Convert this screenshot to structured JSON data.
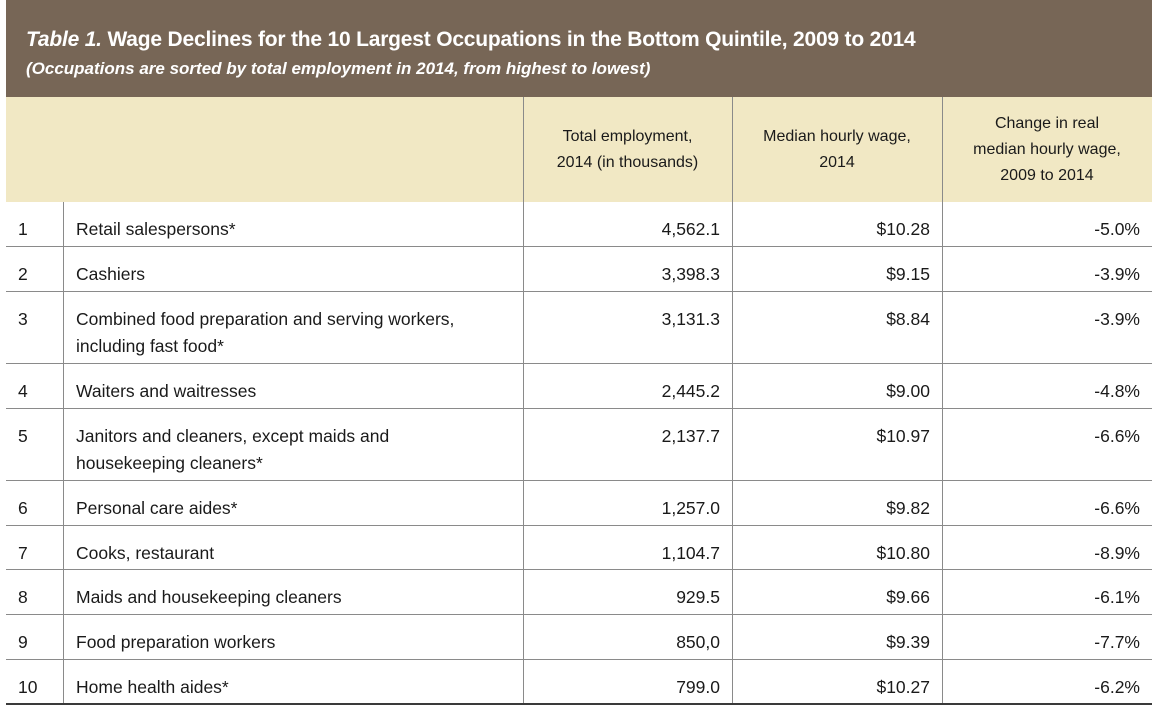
{
  "table": {
    "title_label": "Table 1.",
    "title_text": "Wage Declines for the 10 Largest Occupations in the Bottom Quintile, 2009 to 2014",
    "subtitle": "(Occupations are sorted by total employment in 2014, from highest to lowest)",
    "headers": {
      "employment": [
        "Total employment,",
        "2014 (in thousands)"
      ],
      "wage": [
        "Median hourly wage,",
        "2014"
      ],
      "change": [
        "Change in real",
        "median hourly wage,",
        "2009 to 2014"
      ]
    },
    "rows": [
      {
        "rank": "1",
        "occupation": "Retail salespersons*",
        "employment": "4,562.1",
        "wage": "$10.28",
        "change": "-5.0%"
      },
      {
        "rank": "2",
        "occupation": "Cashiers",
        "employment": "3,398.3",
        "wage": "$9.15",
        "change": "-3.9%"
      },
      {
        "rank": "3",
        "occupation": "Combined food preparation and serving workers, including fast food*",
        "employment": "3,131.3",
        "wage": "$8.84",
        "change": "-3.9%"
      },
      {
        "rank": "4",
        "occupation": "Waiters and waitresses",
        "employment": "2,445.2",
        "wage": "$9.00",
        "change": "-4.8%"
      },
      {
        "rank": "5",
        "occupation": "Janitors and cleaners, except maids and housekeeping cleaners*",
        "employment": "2,137.7",
        "wage": "$10.97",
        "change": "-6.6%"
      },
      {
        "rank": "6",
        "occupation": "Personal care aides*",
        "employment": "1,257.0",
        "wage": "$9.82",
        "change": "-6.6%"
      },
      {
        "rank": "7",
        "occupation": "Cooks, restaurant",
        "employment": "1,104.7",
        "wage": "$10.80",
        "change": "-8.9%"
      },
      {
        "rank": "8",
        "occupation": "Maids and housekeeping cleaners",
        "employment": "929.5",
        "wage": "$9.66",
        "change": "-6.1%"
      },
      {
        "rank": "9",
        "occupation": "Food preparation workers",
        "employment": "850,0",
        "wage": "$9.39",
        "change": "-7.7%"
      },
      {
        "rank": "10",
        "occupation": "Home health aides*",
        "employment": "799.0",
        "wage": "$10.27",
        "change": "-6.2%"
      }
    ]
  },
  "colors": {
    "title_band": "#776656",
    "header_band": "#f1e8c4",
    "rule": "#8a8a8a"
  },
  "chart_data": {
    "type": "table",
    "title": "Table 1. Wage Declines for the 10 Largest Occupations in the Bottom Quintile, 2009 to 2014",
    "subtitle": "(Occupations are sorted by total employment in 2014, from highest to lowest)",
    "columns": [
      "Total employment, 2014 (in thousands)",
      "Median hourly wage, 2014",
      "Change in real median hourly wage, 2009 to 2014"
    ],
    "categories": [
      "Retail salespersons*",
      "Cashiers",
      "Combined food preparation and serving workers, including fast food*",
      "Waiters and waitresses",
      "Janitors and cleaners, except maids and housekeeping cleaners*",
      "Personal care aides*",
      "Cooks, restaurant",
      "Maids and housekeeping cleaners",
      "Food preparation workers",
      "Home health aides*"
    ],
    "series": [
      {
        "name": "Total employment, 2014 (in thousands)",
        "values": [
          4562.1,
          3398.3,
          3131.3,
          2445.2,
          2137.7,
          1257.0,
          1104.7,
          929.5,
          850.0,
          799.0
        ]
      },
      {
        "name": "Median hourly wage, 2014",
        "values": [
          10.28,
          9.15,
          8.84,
          9.0,
          10.97,
          9.82,
          10.8,
          9.66,
          9.39,
          10.27
        ]
      },
      {
        "name": "Change in real median hourly wage, 2009 to 2014",
        "values": [
          -5.0,
          -3.9,
          -3.9,
          -4.8,
          -6.6,
          -6.6,
          -8.9,
          -6.1,
          -7.7,
          -6.2
        ]
      }
    ]
  }
}
